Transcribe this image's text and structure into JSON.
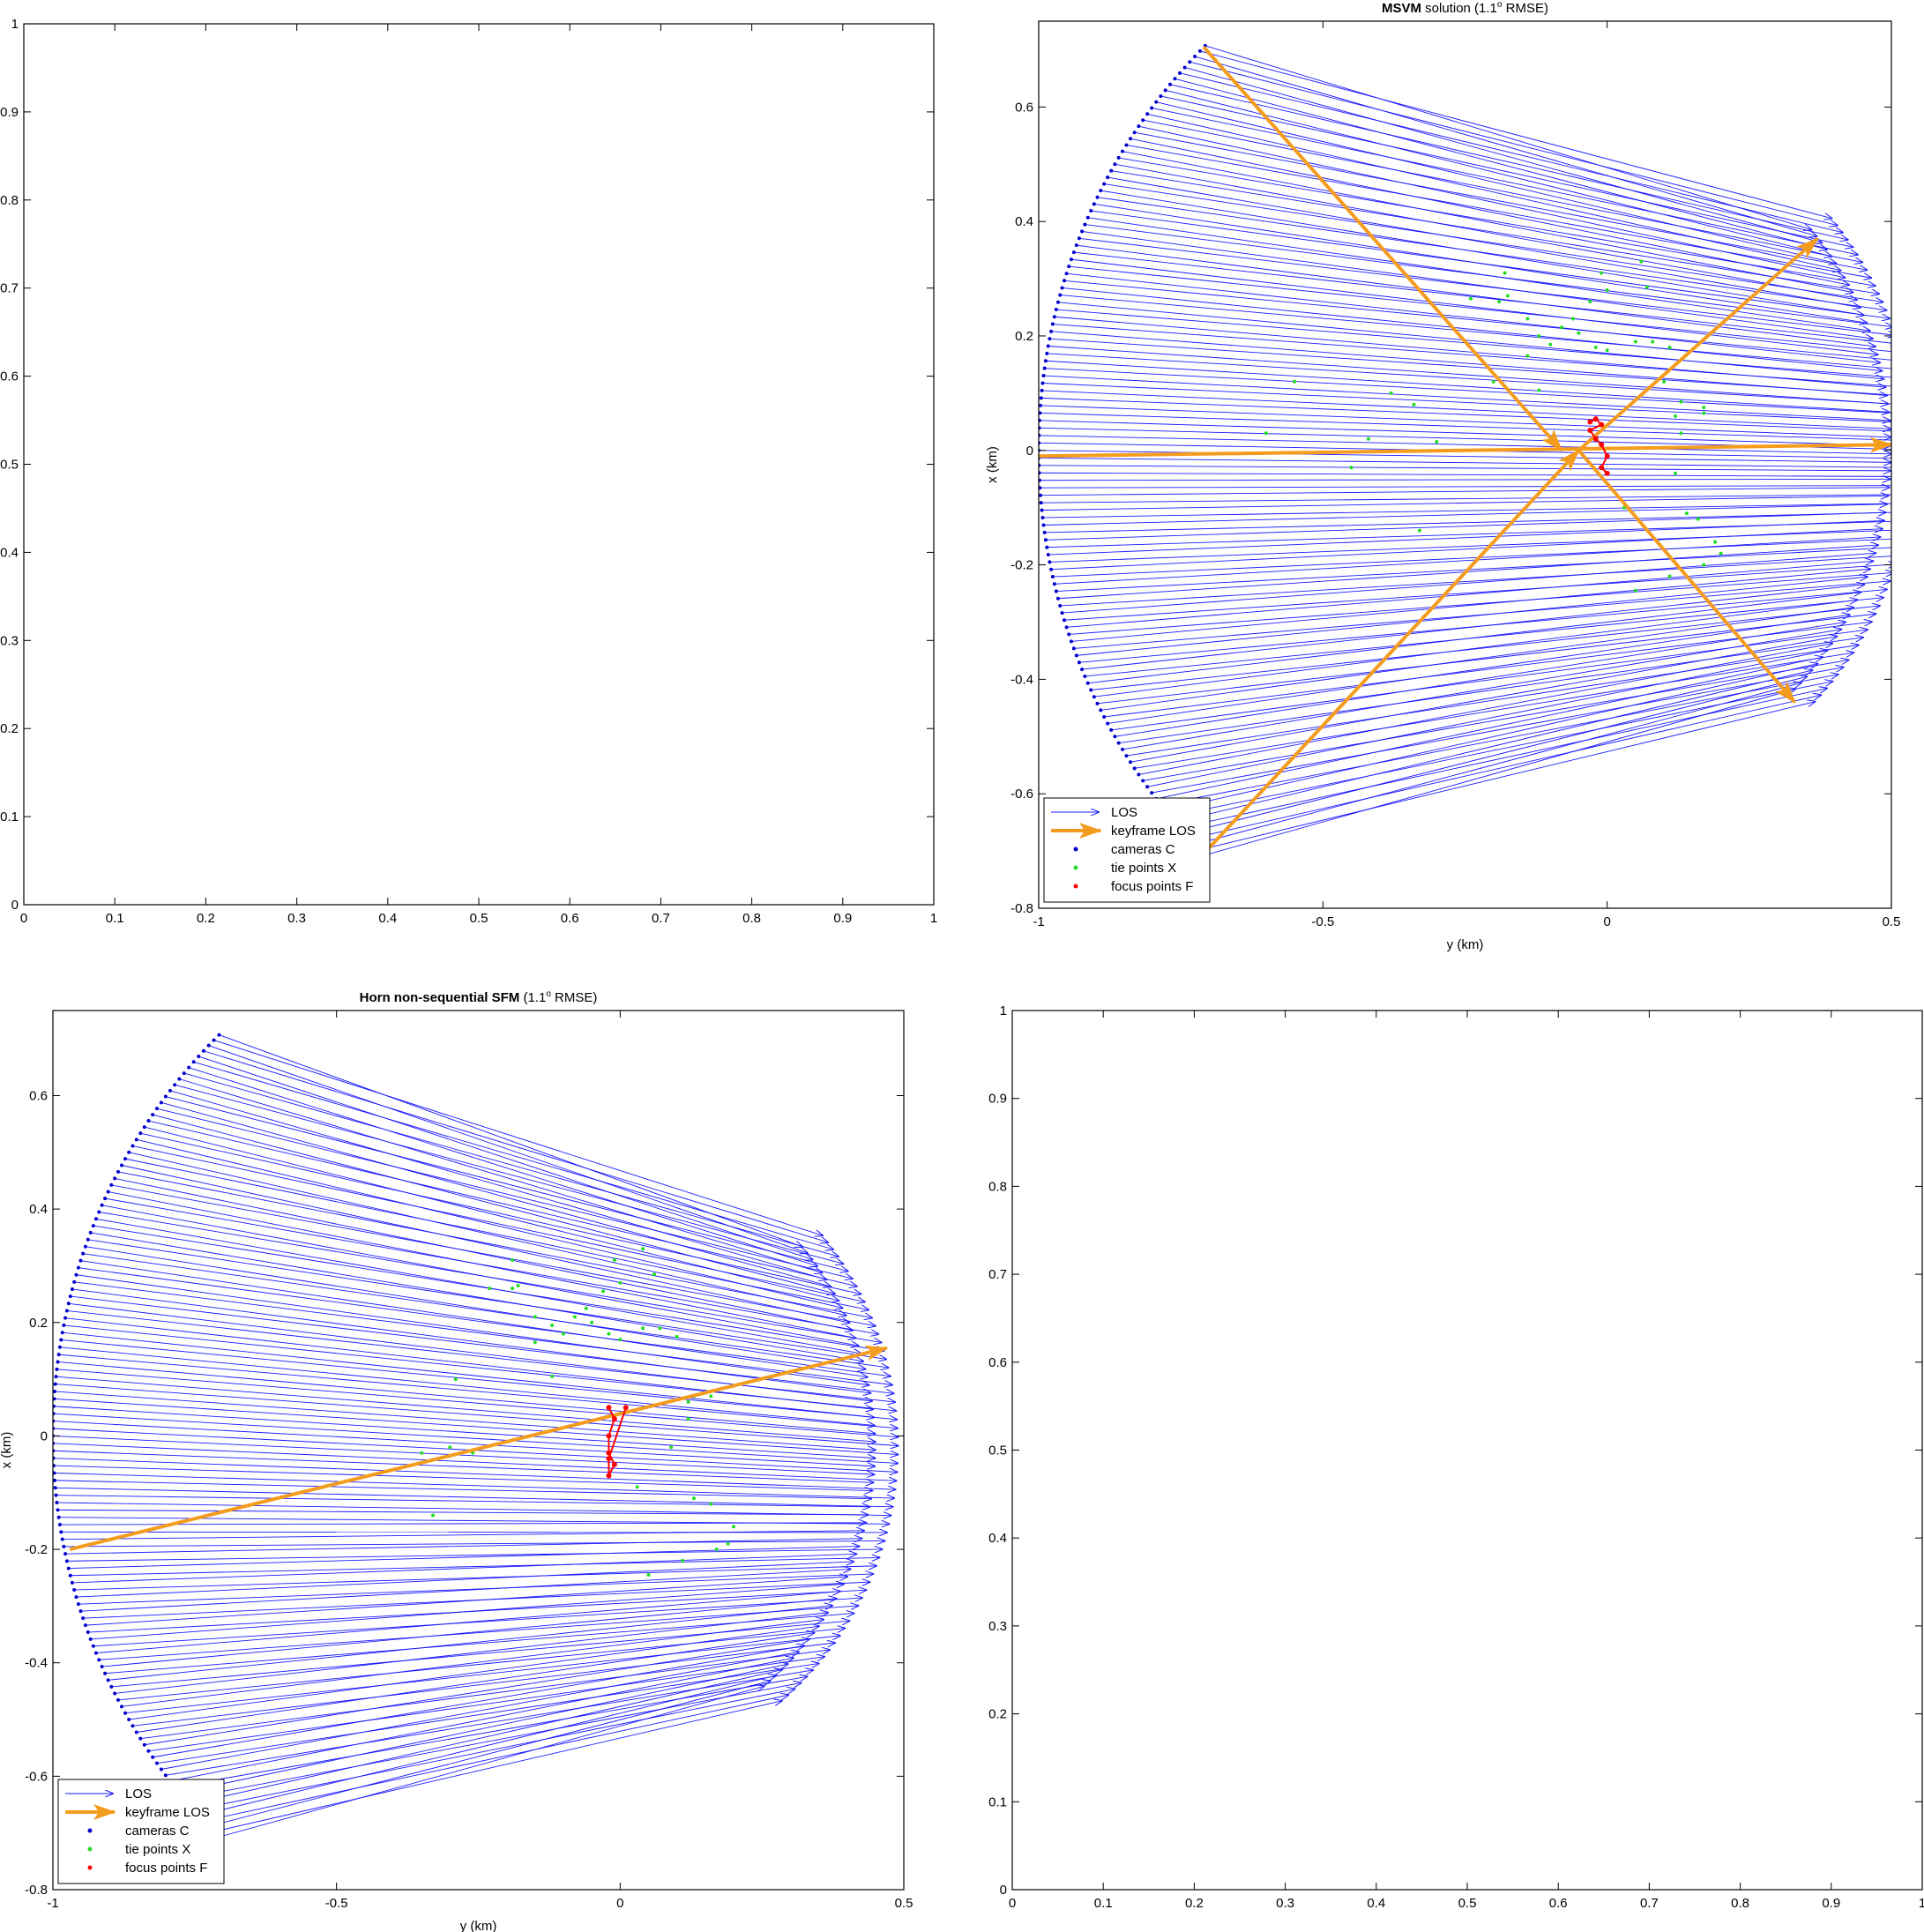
{
  "figure": {
    "panels": [
      "empty-top-left",
      "msvm",
      "horn",
      "empty-bottom-right"
    ]
  },
  "chart_data": [
    {
      "id": "empty-top-left",
      "type": "scatter",
      "title": "",
      "xlabel": "",
      "ylabel": "",
      "xlim": [
        0,
        1
      ],
      "ylim": [
        0,
        1
      ],
      "xticks": [
        "0",
        "0.1",
        "0.2",
        "0.3",
        "0.4",
        "0.5",
        "0.6",
        "0.7",
        "0.8",
        "0.9",
        "1"
      ],
      "yticks": [
        "0",
        "0.1",
        "0.2",
        "0.3",
        "0.4",
        "0.5",
        "0.6",
        "0.7",
        "0.8",
        "0.9",
        "1"
      ],
      "series": []
    },
    {
      "id": "msvm",
      "type": "scatter",
      "title_bold": "MSVM",
      "title_rest": " solution (1.1",
      "title_sup": "o",
      "title_end": " RMSE)",
      "xlabel": "y  (km)",
      "ylabel": "x  (km)",
      "xlim": [
        -1,
        0.5
      ],
      "ylim": [
        -0.8,
        0.75
      ],
      "xticks": [
        "-1",
        "-0.5",
        "0",
        "0.5"
      ],
      "yticks": [
        "-0.8",
        "-0.6",
        "-0.4",
        "-0.2",
        "0",
        "0.2",
        "0.4",
        "0.6"
      ],
      "legend_position": "bottom-left",
      "legend": [
        "LOS",
        "keyframe LOS",
        "cameras C",
        "tie points X",
        "focus points F"
      ],
      "colors": {
        "los": "#1a1aff",
        "keyframe": "#f39c1e",
        "cameras": "#0000cc",
        "tie": "#22dd22",
        "focus": "#ff0000"
      },
      "camera_arc": {
        "center": [
          0,
          0
        ],
        "radius": 1.0,
        "angle_start_deg": 135,
        "angle_end_deg": 225,
        "count": 121
      },
      "target_arc": {
        "center": [
          -0.1,
          0
        ],
        "radius": 0.6,
        "angle_start_deg": -44,
        "angle_end_deg": 40
      },
      "keyframe_los": [
        {
          "from": [
            -0.71,
            0.705
          ],
          "to": [
            -0.08,
            0.0
          ]
        },
        {
          "from": [
            -1.0,
            -0.01
          ],
          "to": [
            0.5,
            0.01
          ]
        },
        {
          "from": [
            -0.71,
            -0.705
          ],
          "to": [
            -0.05,
            0.0
          ]
        },
        {
          "from": [
            -0.05,
            0.0
          ],
          "to": [
            0.37,
            0.37
          ]
        },
        {
          "from": [
            -0.05,
            0.0
          ],
          "to": [
            0.33,
            -0.44
          ]
        }
      ],
      "tie_points": [
        [
          -0.18,
          0.31
        ],
        [
          -0.24,
          0.265
        ],
        [
          -0.19,
          0.26
        ],
        [
          -0.175,
          0.27
        ],
        [
          -0.14,
          0.23
        ],
        [
          -0.12,
          0.2
        ],
        [
          -0.1,
          0.185
        ],
        [
          -0.08,
          0.215
        ],
        [
          -0.06,
          0.23
        ],
        [
          -0.05,
          0.205
        ],
        [
          -0.03,
          0.26
        ],
        [
          -0.01,
          0.31
        ],
        [
          0.0,
          0.28
        ],
        [
          -0.14,
          0.165
        ],
        [
          -0.02,
          0.18
        ],
        [
          0.0,
          0.175
        ],
        [
          0.05,
          0.19
        ],
        [
          0.08,
          0.19
        ],
        [
          0.11,
          0.18
        ],
        [
          0.07,
          0.285
        ],
        [
          0.06,
          0.33
        ],
        [
          -0.12,
          0.105
        ],
        [
          0.13,
          0.085
        ],
        [
          0.17,
          0.065
        ],
        [
          0.13,
          0.03
        ],
        [
          0.17,
          0.075
        ],
        [
          0.12,
          -0.04
        ],
        [
          0.14,
          -0.11
        ],
        [
          0.19,
          -0.16
        ],
        [
          0.17,
          -0.2
        ],
        [
          0.11,
          -0.22
        ],
        [
          0.05,
          -0.245
        ],
        [
          -0.33,
          -0.14
        ],
        [
          -0.42,
          0.02
        ],
        [
          -0.45,
          -0.03
        ],
        [
          -0.6,
          0.03
        ],
        [
          -0.55,
          0.12
        ],
        [
          -0.38,
          0.1
        ],
        [
          0.1,
          0.12
        ],
        [
          0.2,
          -0.18
        ],
        [
          -0.3,
          0.015
        ],
        [
          0.16,
          -0.12
        ],
        [
          -0.2,
          0.12
        ],
        [
          -0.34,
          0.08
        ],
        [
          0.03,
          -0.1
        ],
        [
          0.12,
          0.06
        ]
      ],
      "focus_path": [
        [
          -0.03,
          0.05
        ],
        [
          -0.02,
          0.055
        ],
        [
          -0.01,
          0.045
        ],
        [
          -0.03,
          0.035
        ],
        [
          -0.02,
          0.02
        ],
        [
          -0.01,
          0.01
        ],
        [
          0.0,
          -0.01
        ],
        [
          -0.01,
          -0.03
        ],
        [
          0.0,
          -0.04
        ]
      ]
    },
    {
      "id": "horn",
      "type": "scatter",
      "title_bold": "Horn non-sequential SFM",
      "title_rest": " (1.1",
      "title_sup": "o",
      "title_end": " RMSE)",
      "xlabel": "y  (km)",
      "ylabel": "x  (km)",
      "xlim": [
        -1,
        0.5
      ],
      "ylim": [
        -0.8,
        0.75
      ],
      "xticks": [
        "-1",
        "-0.5",
        "0",
        "0.5"
      ],
      "yticks": [
        "-0.8",
        "-0.6",
        "-0.4",
        "-0.2",
        "0",
        "0.2",
        "0.4",
        "0.6"
      ],
      "legend_position": "bottom-left",
      "legend": [
        "LOS",
        "keyframe LOS",
        "cameras C",
        "tie points X",
        "focus points F"
      ],
      "colors": {
        "los": "#1a1aff",
        "keyframe": "#f39c1e",
        "cameras": "#0000cc",
        "tie": "#22dd22",
        "focus": "#ff0000"
      },
      "camera_arc": {
        "center": [
          0,
          0
        ],
        "radius": 1.0,
        "angle_start_deg": 135,
        "angle_end_deg": 225,
        "count": 121
      },
      "target_arc": {
        "center": [
          -0.1,
          -0.02
        ],
        "radius": 0.55,
        "angle_start_deg": -50,
        "angle_end_deg": 40
      },
      "keyframe_los": [
        {
          "from": [
            -0.97,
            -0.2
          ],
          "to": [
            0.47,
            0.155
          ]
        }
      ],
      "tie_points": [
        [
          -0.19,
          0.31
        ],
        [
          -0.23,
          0.26
        ],
        [
          -0.19,
          0.26
        ],
        [
          -0.18,
          0.265
        ],
        [
          -0.15,
          0.21
        ],
        [
          -0.12,
          0.195
        ],
        [
          -0.1,
          0.18
        ],
        [
          -0.08,
          0.21
        ],
        [
          -0.06,
          0.225
        ],
        [
          -0.05,
          0.2
        ],
        [
          -0.03,
          0.255
        ],
        [
          -0.01,
          0.31
        ],
        [
          0.0,
          0.27
        ],
        [
          -0.15,
          0.165
        ],
        [
          -0.02,
          0.18
        ],
        [
          0.0,
          0.17
        ],
        [
          0.04,
          0.19
        ],
        [
          0.07,
          0.19
        ],
        [
          0.1,
          0.175
        ],
        [
          0.06,
          0.285
        ],
        [
          0.04,
          0.33
        ],
        [
          -0.12,
          0.105
        ],
        [
          0.13,
          0.07
        ],
        [
          0.16,
          0.07
        ],
        [
          0.12,
          0.03
        ],
        [
          0.09,
          -0.02
        ],
        [
          0.13,
          -0.11
        ],
        [
          0.2,
          -0.16
        ],
        [
          0.17,
          -0.2
        ],
        [
          0.11,
          -0.22
        ],
        [
          0.05,
          -0.245
        ],
        [
          -0.33,
          -0.14
        ],
        [
          -0.3,
          -0.02
        ],
        [
          -0.35,
          -0.03
        ],
        [
          -0.29,
          0.1
        ],
        [
          0.19,
          -0.19
        ],
        [
          -0.26,
          -0.03
        ],
        [
          0.16,
          -0.12
        ],
        [
          0.03,
          -0.09
        ],
        [
          0.12,
          0.06
        ]
      ],
      "focus_path": [
        [
          -0.02,
          0.05
        ],
        [
          -0.01,
          0.03
        ],
        [
          -0.02,
          0.0
        ],
        [
          -0.02,
          -0.03
        ],
        [
          -0.01,
          -0.05
        ],
        [
          -0.02,
          -0.07
        ],
        [
          -0.02,
          -0.04
        ],
        [
          0.01,
          0.05
        ]
      ]
    },
    {
      "id": "empty-bottom-right",
      "type": "scatter",
      "title": "",
      "xlabel": "",
      "ylabel": "",
      "xlim": [
        0,
        1
      ],
      "ylim": [
        0,
        1
      ],
      "xticks": [
        "0",
        "0.1",
        "0.2",
        "0.3",
        "0.4",
        "0.5",
        "0.6",
        "0.7",
        "0.8",
        "0.9",
        "1"
      ],
      "yticks": [
        "0",
        "0.1",
        "0.2",
        "0.3",
        "0.4",
        "0.5",
        "0.6",
        "0.7",
        "0.8",
        "0.9",
        "1"
      ],
      "series": []
    }
  ]
}
